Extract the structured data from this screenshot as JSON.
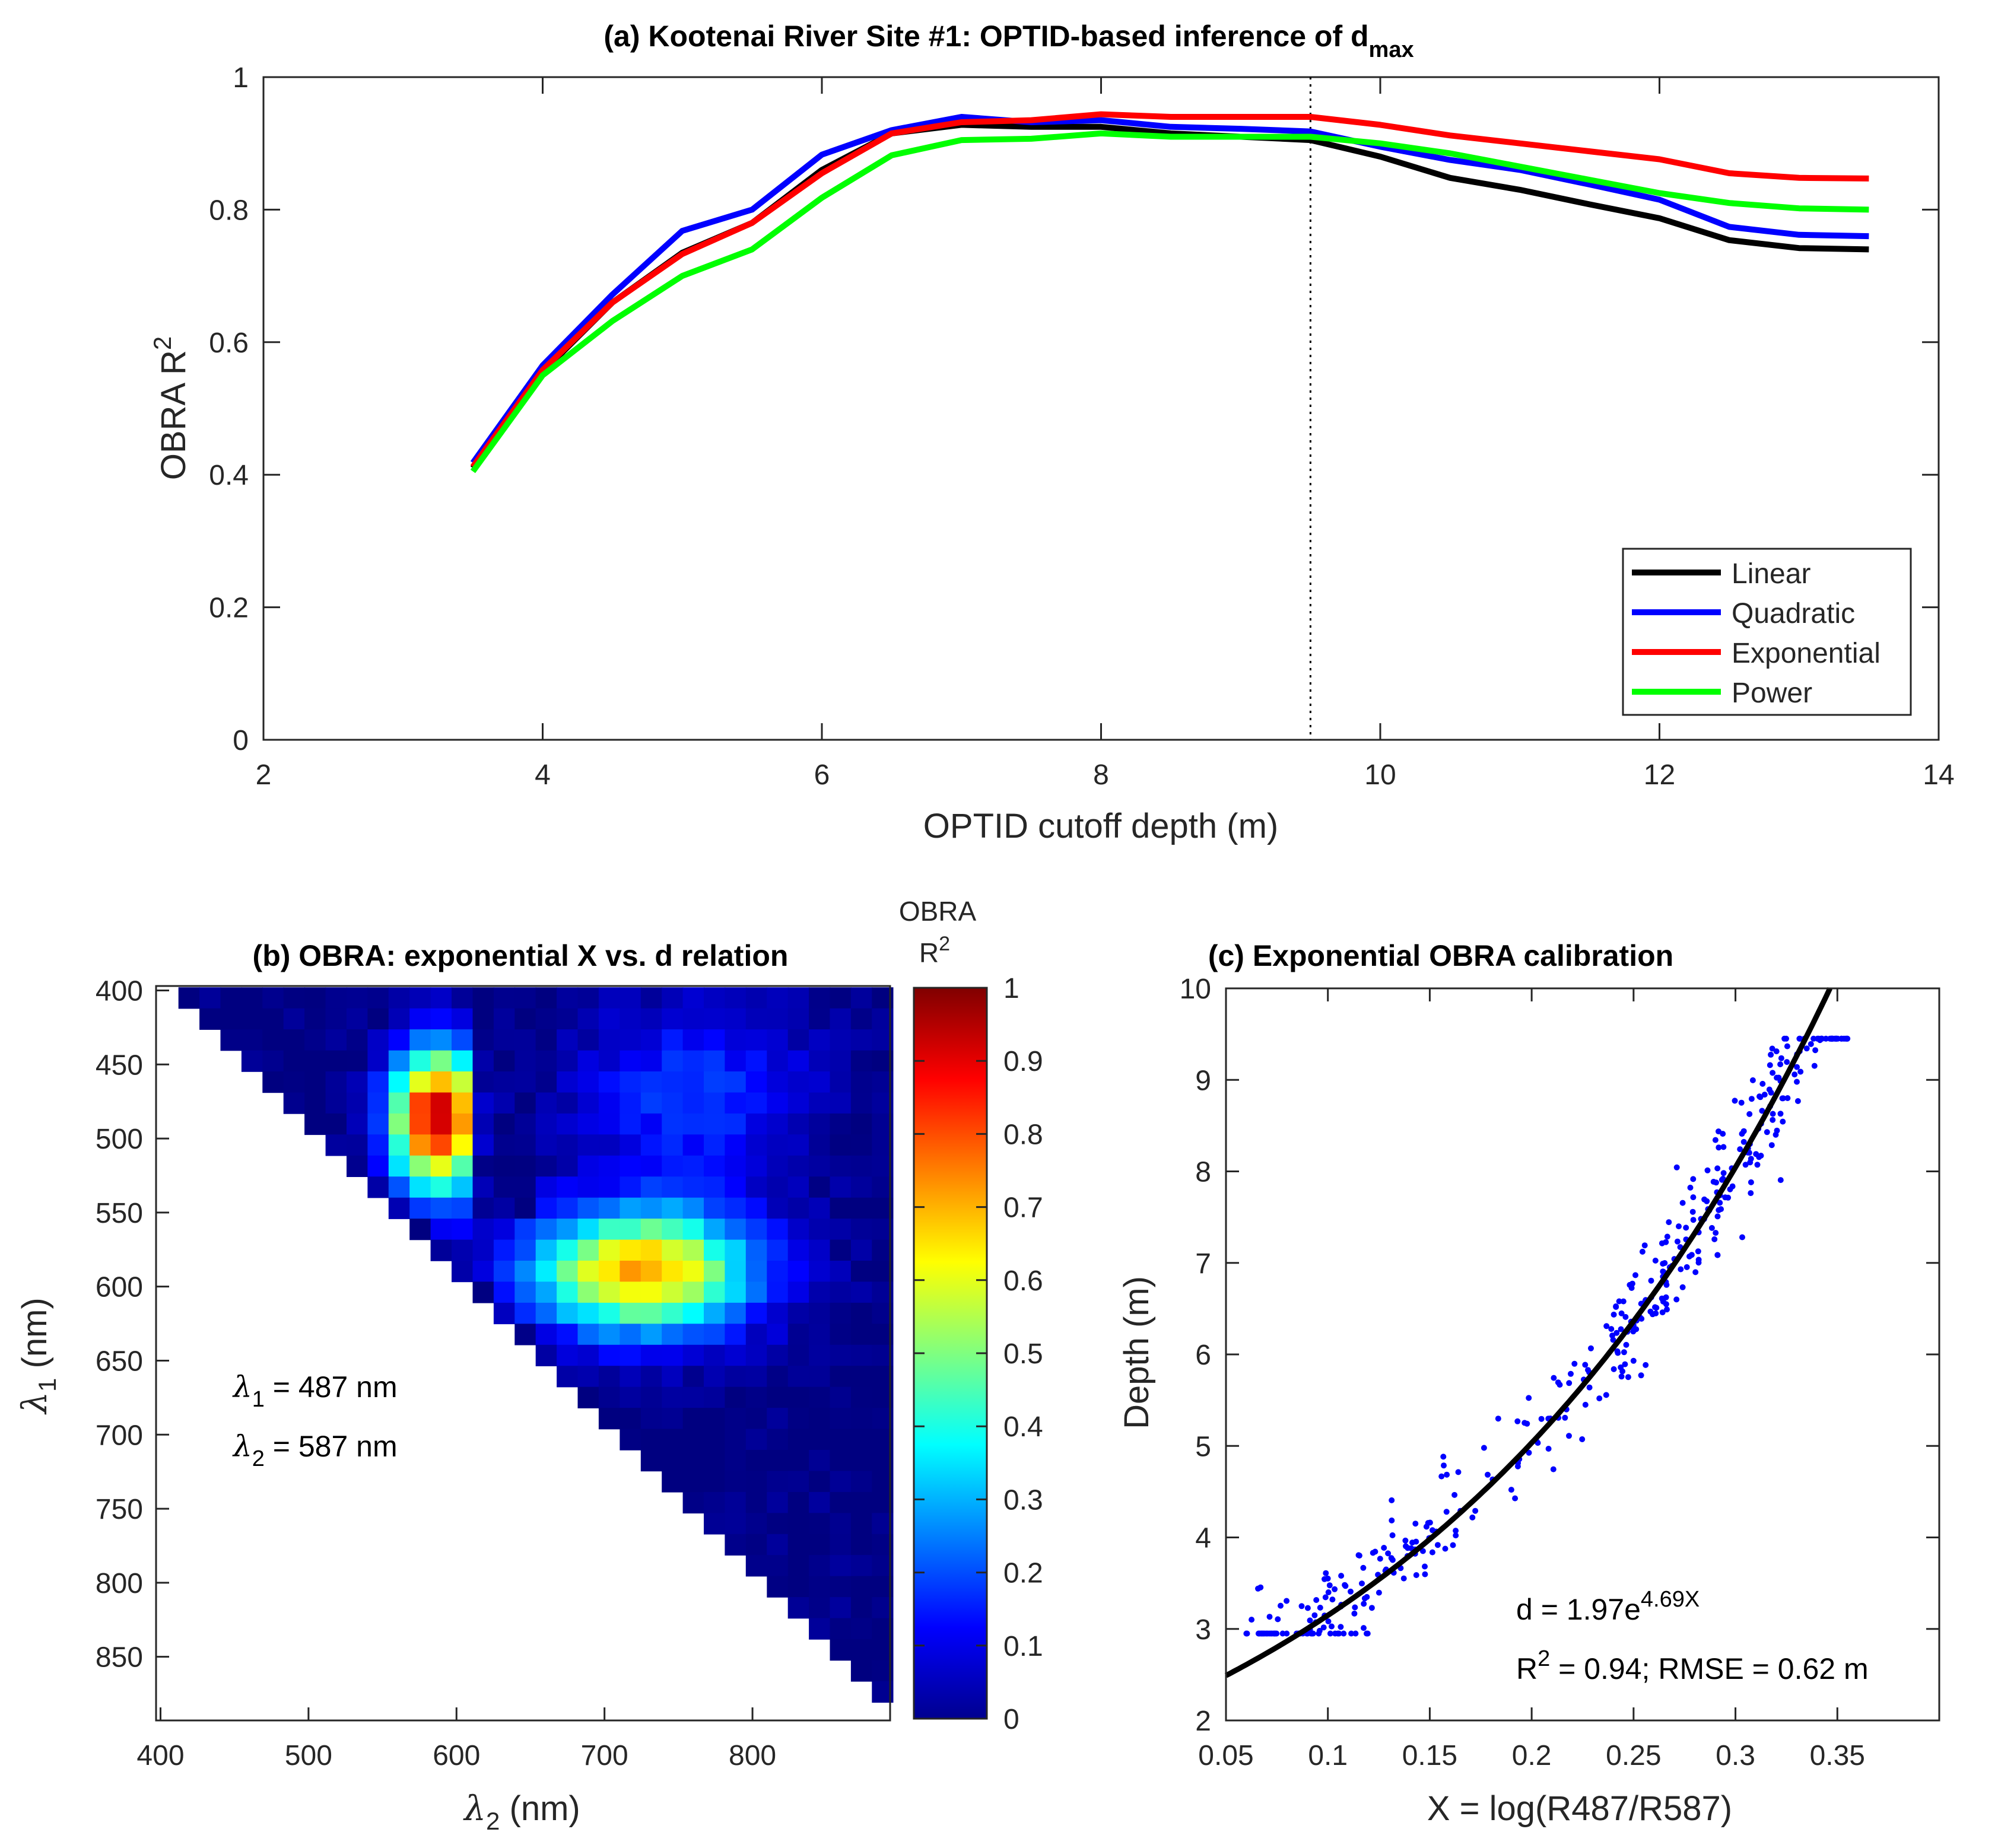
{
  "chart_data": [
    {
      "type": "line",
      "panel": "a",
      "title": "(a) Kootenai River Site #1: OPTID-based inference of d",
      "title_sub": "max",
      "xlabel": "OPTID cutoff depth (m)",
      "ylabel": "OBRA R",
      "ylabel_sup": "2",
      "xlim": [
        2,
        14
      ],
      "ylim": [
        0,
        1
      ],
      "xticks": [
        2,
        4,
        6,
        8,
        10,
        12,
        14
      ],
      "yticks": [
        0,
        0.2,
        0.4,
        0.6,
        0.8,
        1
      ],
      "xtick_labels": [
        "2",
        "4",
        "6",
        "8",
        "10",
        "12",
        "14"
      ],
      "ytick_labels": [
        "0",
        "0.2",
        "0.4",
        "0.6",
        "0.8",
        "1"
      ],
      "vline": 9.5,
      "legend_position": "bottom-right",
      "x": [
        3.5,
        4,
        4.5,
        5,
        5.5,
        6,
        6.5,
        7,
        7.5,
        8,
        8.5,
        9,
        9.5,
        10,
        10.5,
        11,
        11.5,
        12,
        12.5,
        13,
        13.5
      ],
      "series": [
        {
          "name": "Linear",
          "color": "#000000",
          "values": [
            0.41,
            0.555,
            0.66,
            0.735,
            0.78,
            0.86,
            0.915,
            0.928,
            0.925,
            0.925,
            0.915,
            0.91,
            0.905,
            0.88,
            0.848,
            0.83,
            0.808,
            0.787,
            0.754,
            0.742,
            0.74
          ]
        },
        {
          "name": "Quadratic",
          "color": "#0000ff",
          "values": [
            0.418,
            0.565,
            0.672,
            0.768,
            0.8,
            0.883,
            0.92,
            0.94,
            0.932,
            0.935,
            0.925,
            0.922,
            0.918,
            0.895,
            0.875,
            0.86,
            0.838,
            0.815,
            0.774,
            0.762,
            0.76
          ]
        },
        {
          "name": "Exponential",
          "color": "#ff0000",
          "values": [
            0.412,
            0.558,
            0.66,
            0.733,
            0.78,
            0.855,
            0.915,
            0.932,
            0.935,
            0.944,
            0.94,
            0.94,
            0.94,
            0.928,
            0.912,
            0.9,
            0.888,
            0.876,
            0.855,
            0.848,
            0.847
          ]
        },
        {
          "name": "Power",
          "color": "#00ff00",
          "values": [
            0.405,
            0.55,
            0.632,
            0.7,
            0.74,
            0.818,
            0.882,
            0.905,
            0.907,
            0.915,
            0.91,
            0.91,
            0.91,
            0.9,
            0.885,
            0.865,
            0.845,
            0.825,
            0.81,
            0.802,
            0.8
          ]
        }
      ]
    },
    {
      "type": "heatmap",
      "panel": "b",
      "title": "(b) OBRA: exponential X vs. d relation",
      "xlabel": "λ2 (nm)",
      "ylabel": "λ1 (nm)",
      "xticks": [
        400,
        500,
        600,
        700,
        800
      ],
      "yticks": [
        400,
        450,
        500,
        550,
        600,
        650,
        700,
        750,
        800,
        850
      ],
      "xlim": [
        397,
        893
      ],
      "ylim": [
        397,
        893
      ],
      "cell_start_nm": 405,
      "cell_step_nm": 14.2,
      "n_cells": 35,
      "colorbar_label": "OBRA R2",
      "colorbar_ticks": [
        "0",
        "0.1",
        "0.2",
        "0.3",
        "0.4",
        "0.5",
        "0.6",
        "0.7",
        "0.8",
        "0.9",
        "1"
      ],
      "peak_1": {
        "lambda1": 487,
        "lambda2": 587,
        "r2": 0.94
      },
      "peak_2": {
        "lambda1": 590,
        "lambda2": 725,
        "r2": 0.72
      },
      "colormap": "jet"
    },
    {
      "type": "scatter",
      "panel": "c",
      "title": "(c) Exponential OBRA calibration",
      "xlabel": "X = log(R487/R587)",
      "ylabel": "Depth (m)",
      "xlim": [
        0.05,
        0.4
      ],
      "ylim": [
        2,
        10
      ],
      "xticks": [
        0.05,
        0.1,
        0.15,
        0.2,
        0.25,
        0.3,
        0.35
      ],
      "xtick_labels": [
        "0.05",
        "0.1",
        "0.15",
        "0.2",
        "0.25",
        "0.3",
        "0.35"
      ],
      "yticks": [
        2,
        3,
        4,
        5,
        6,
        7,
        8,
        9,
        10
      ],
      "fit": {
        "a": 1.97,
        "b": 4.69,
        "color": "#000000"
      },
      "point_color": "#0000ff",
      "n_points": 420
    }
  ],
  "annotations": {
    "lambda1": {
      "sym": "λ",
      "sub": "1",
      "text": " = 487 nm"
    },
    "lambda2": {
      "sym": "λ",
      "sub": "2",
      "text": " = 587 nm"
    },
    "colorbar_title_1": "OBRA",
    "colorbar_title_2": "R",
    "colorbar_title_sup": "2",
    "fit_eq": "d = 1.97e",
    "fit_eq_sup": "4.69X",
    "fit_stats_pre": "R",
    "fit_stats_sup": "2",
    "fit_stats_post": " = 0.94; RMSE = 0.62 m"
  },
  "axis_text": {
    "b_x_sym": "λ",
    "b_x_sub": "2",
    "b_x_unit": " (nm)",
    "b_y_sym": "λ",
    "b_y_sub": "1",
    "b_y_unit": " (nm)"
  }
}
